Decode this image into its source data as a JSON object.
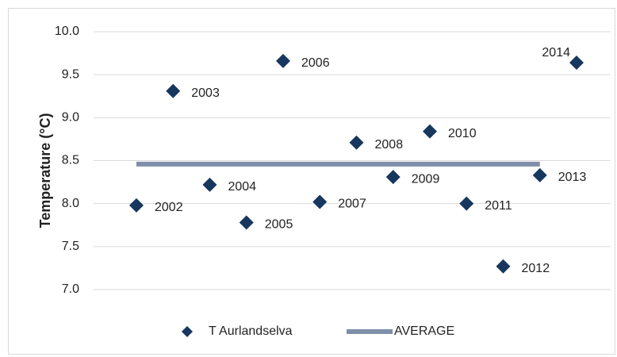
{
  "chart_data": {
    "type": "scatter",
    "y_label": "Temperature (°C)",
    "categories": [
      "2002",
      "2003",
      "2004",
      "2005",
      "2006",
      "2007",
      "2008",
      "2009",
      "2010",
      "2011",
      "2012",
      "2013",
      "2014"
    ],
    "series": [
      {
        "name": "T Aurlandselva",
        "type": "scatter",
        "color": "#17375e",
        "values": [
          7.98,
          9.31,
          8.22,
          7.78,
          9.66,
          8.02,
          8.71,
          8.31,
          8.84,
          8.0,
          7.27,
          8.33,
          9.64
        ]
      },
      {
        "name": "AVERAGE",
        "type": "line",
        "color": "#7f8fa9",
        "values": [
          8.46,
          8.46,
          8.46,
          8.46,
          8.46,
          8.46,
          8.46,
          8.46,
          8.46,
          8.46,
          8.46,
          8.46,
          null
        ]
      }
    ],
    "ylim": [
      7,
      10
    ],
    "yticks": [
      {
        "value": 7,
        "label": "7.0"
      },
      {
        "value": 7.5,
        "label": "7.5"
      },
      {
        "value": 8,
        "label": "8.0"
      },
      {
        "value": 8.5,
        "label": "8.5"
      },
      {
        "value": 9,
        "label": "9.0"
      },
      {
        "value": 9.5,
        "label": "9.5"
      },
      {
        "value": 10,
        "label": "10.0"
      }
    ],
    "grid": true,
    "legend": "bottom"
  }
}
